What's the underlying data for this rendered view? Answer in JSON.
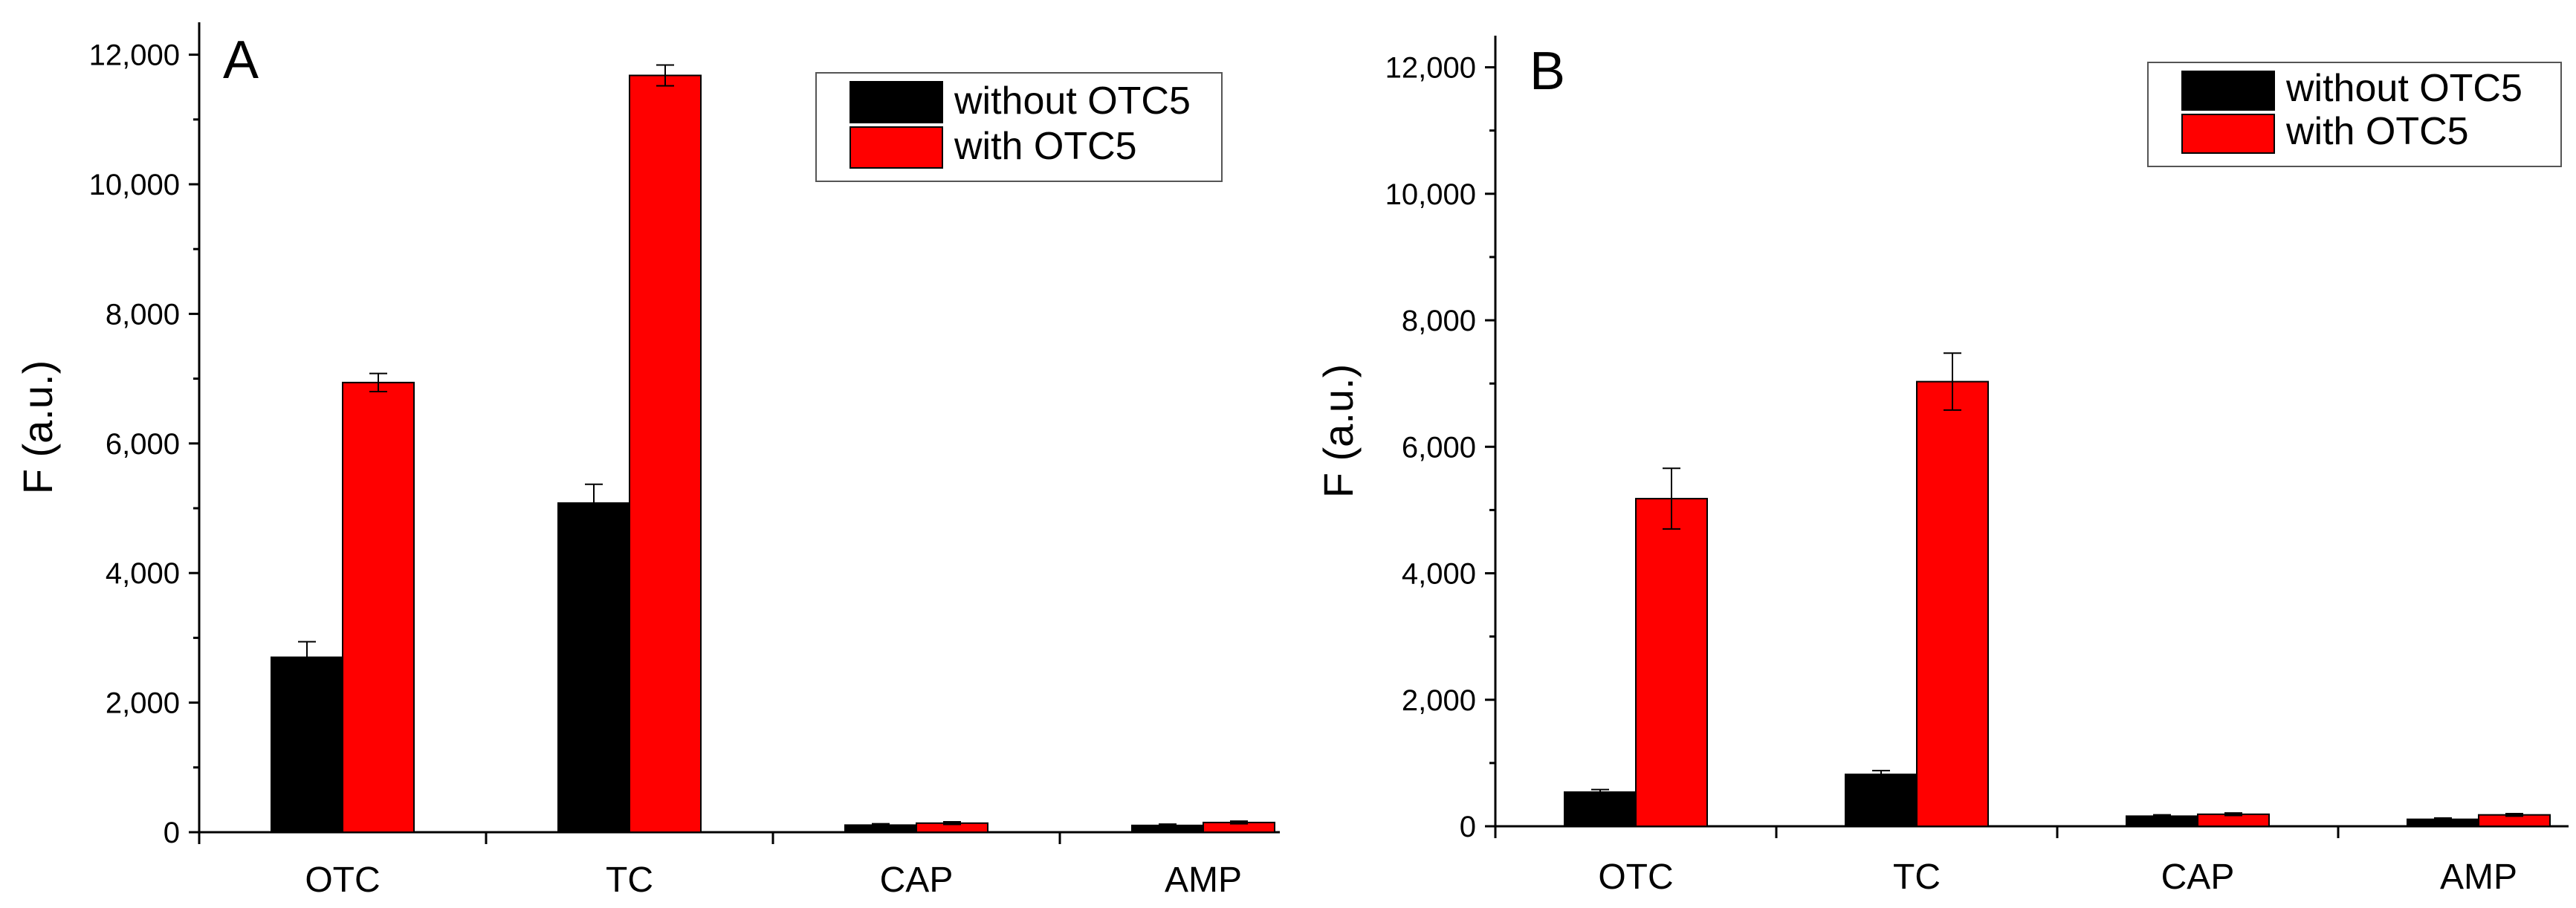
{
  "chart_data": [
    {
      "type": "bar",
      "panel_label": "A",
      "title": "",
      "xlabel": "",
      "ylabel": "F (a.u.)",
      "ylim": [
        0,
        12500
      ],
      "yticks": [
        0,
        2000,
        4000,
        6000,
        8000,
        10000,
        12000
      ],
      "ytick_labels": [
        "0",
        "2,000",
        "4,000",
        "6,000",
        "8,000",
        "10,000",
        "12,000"
      ],
      "categories": [
        "OTC",
        "TC",
        "CAP",
        "AMP"
      ],
      "series": [
        {
          "name": "without OTC5",
          "color": "#000000",
          "values": [
            2700,
            5080,
            110,
            105
          ],
          "errors": [
            240,
            290,
            20,
            20
          ]
        },
        {
          "name": "with OTC5",
          "color": "#ff0000",
          "values": [
            6940,
            11680,
            140,
            150
          ],
          "errors": [
            140,
            160,
            20,
            20
          ]
        }
      ],
      "legend_position": "top-right"
    },
    {
      "type": "bar",
      "panel_label": "B",
      "title": "",
      "xlabel": "",
      "ylabel": "F (a.u.)",
      "ylim": [
        0,
        12500
      ],
      "yticks": [
        0,
        2000,
        4000,
        6000,
        8000,
        10000,
        12000
      ],
      "ytick_labels": [
        "0",
        "2,000",
        "4,000",
        "6,000",
        "8,000",
        "10,000",
        "12,000"
      ],
      "categories": [
        "OTC",
        "TC",
        "CAP",
        "AMP"
      ],
      "series": [
        {
          "name": "without OTC5",
          "color": "#000000",
          "values": [
            540,
            820,
            160,
            110
          ],
          "errors": [
            40,
            60,
            20,
            20
          ]
        },
        {
          "name": "with OTC5",
          "color": "#ff0000",
          "values": [
            5180,
            7030,
            190,
            180
          ],
          "errors": [
            480,
            450,
            20,
            20
          ]
        }
      ],
      "legend_position": "top-right"
    }
  ]
}
